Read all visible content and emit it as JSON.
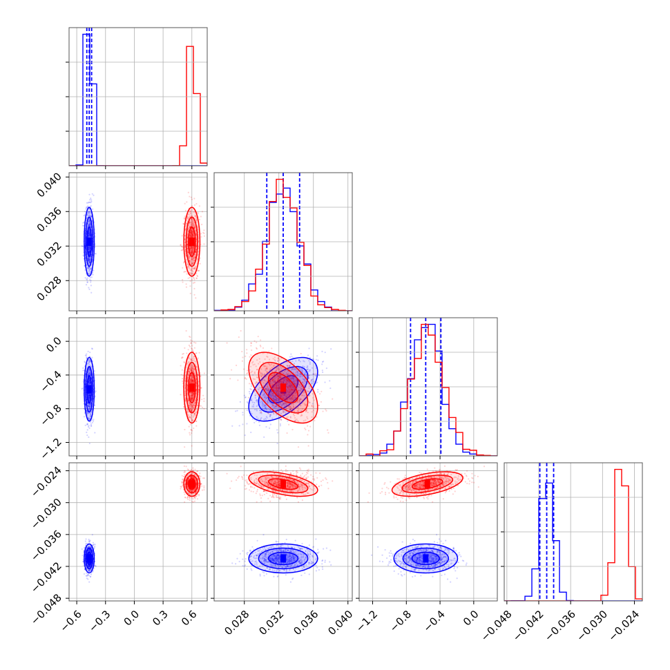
{
  "chart_data": {
    "type": "corner",
    "parameters": 4,
    "series": [
      {
        "color": "#0000ff",
        "centers": [
          -0.47,
          0.0325,
          -0.57,
          -0.0405
        ],
        "stds": [
          0.025,
          0.0019,
          0.18,
          0.0013
        ],
        "correlations": [
          [
            0,
            1,
            0
          ],
          [
            1,
            2,
            0.55
          ],
          [
            1,
            3,
            0
          ],
          [
            2,
            3,
            0
          ]
        ],
        "quantile_lines": true
      },
      {
        "color": "#ff0000",
        "centers": [
          0.6,
          0.0325,
          -0.55,
          -0.0265
        ],
        "stds": [
          0.04,
          0.0019,
          0.2,
          0.0011
        ],
        "correlations": [
          [
            0,
            1,
            0
          ],
          [
            1,
            2,
            -0.55
          ],
          [
            1,
            3,
            -0.5
          ],
          [
            2,
            3,
            0.5
          ]
        ],
        "quantile_lines": false
      }
    ],
    "axes": [
      {
        "range": [
          -0.68,
          0.76
        ],
        "tick_values": [
          -0.6,
          -0.3,
          0.0,
          0.3,
          0.6
        ],
        "tick_labels": [
          "−0.6",
          "−0.3",
          "0.0",
          "0.3",
          "0.6"
        ]
      },
      {
        "range": [
          0.0245,
          0.0405
        ],
        "tick_values": [
          0.028,
          0.032,
          0.036,
          0.04
        ],
        "tick_labels": [
          "0.028",
          "0.032",
          "0.036",
          "0.040"
        ]
      },
      {
        "range": [
          -1.36,
          0.28
        ],
        "tick_values": [
          -1.2,
          -0.8,
          -0.4,
          0.0
        ],
        "tick_labels": [
          "−1.2",
          "−0.8",
          "−0.4",
          "0.0"
        ]
      },
      {
        "range": [
          -0.0485,
          -0.0225
        ],
        "tick_values": [
          -0.048,
          -0.042,
          -0.036,
          -0.03,
          -0.024
        ],
        "tick_labels": [
          "−0.048",
          "−0.042",
          "−0.036",
          "−0.030",
          "−0.024"
        ]
      }
    ],
    "grid": true
  }
}
